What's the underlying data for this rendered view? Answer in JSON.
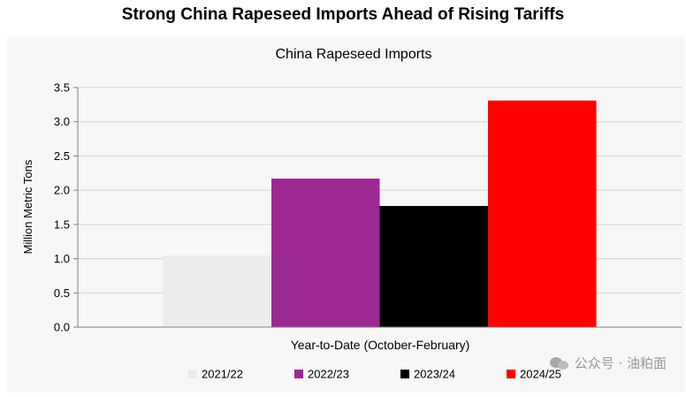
{
  "headline": "Strong China Rapeseed Imports Ahead of Rising Tariffs",
  "watermark": "公众号 · 油粕面",
  "chart_data": {
    "type": "bar",
    "title": "China Rapeseed Imports",
    "xlabel": "Year-to-Date (October-February)",
    "ylabel": "Million Metric Tons",
    "ylim": [
      0,
      3.5
    ],
    "yticks": [
      "0.0",
      "0.5",
      "1.0",
      "1.5",
      "2.0",
      "2.5",
      "3.0",
      "3.5"
    ],
    "grid": true,
    "legend_position": "bottom",
    "categories": [
      ""
    ],
    "series": [
      {
        "name": "2021/22",
        "color": "#ececec",
        "values": [
          1.05
        ]
      },
      {
        "name": "2022/23",
        "color": "#9b2991",
        "values": [
          2.17
        ]
      },
      {
        "name": "2023/24",
        "color": "#000000",
        "values": [
          1.77
        ]
      },
      {
        "name": "2024/25",
        "color": "#ff0000",
        "values": [
          3.31
        ]
      }
    ]
  }
}
